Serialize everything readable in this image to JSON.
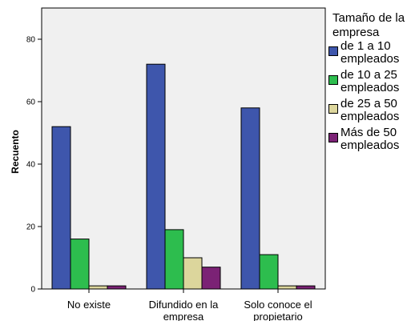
{
  "chart_data": {
    "type": "bar",
    "ylabel": "Recuento",
    "xlabel": "",
    "ylim": [
      0,
      90
    ],
    "yticks": [
      0,
      20,
      40,
      60,
      80
    ],
    "grid": false,
    "legend_position": "right",
    "categories": [
      "No existe",
      "Difundido en la empresa",
      "Solo conoce el propietario"
    ],
    "legend_title": "Tamaño de la empresa",
    "series": [
      {
        "name": "de 1 a 10 empleados",
        "color": "#3E56AC",
        "values": [
          52,
          72,
          58
        ]
      },
      {
        "name": "de 10 a 25 empleados",
        "color": "#2DBD4E",
        "values": [
          16,
          19,
          11
        ]
      },
      {
        "name": "de 25 a 50 empleados",
        "color": "#DCD69C",
        "values": [
          1,
          10,
          1
        ]
      },
      {
        "name": "Más de 50 empleados",
        "color": "#7B2275",
        "values": [
          1,
          7,
          1
        ]
      }
    ]
  }
}
